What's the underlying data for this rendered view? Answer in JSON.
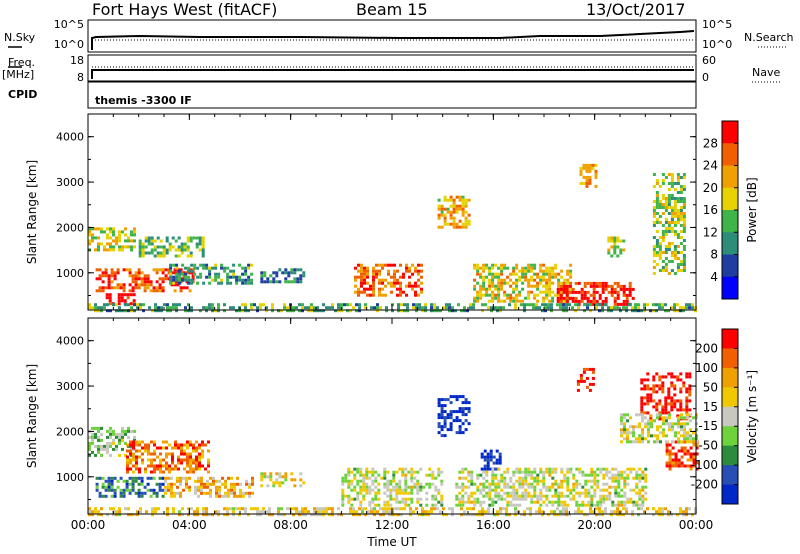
{
  "header": {
    "station": "Fort Hays West (fitACF)",
    "beam": "Beam 15",
    "date": "13/Oct/2017"
  },
  "summary_panels": {
    "nsky_label": "N.Sky",
    "nsky_ticks": [
      "10^5",
      "10^0"
    ],
    "nsearch_label": "N.Search",
    "nsearch_ticks": [
      "10^5",
      "10^0"
    ],
    "freq_label": "Freq.",
    "freq_unit": "[MHz]",
    "freq_ticks": [
      "18",
      "8"
    ],
    "nave_label": "Nave",
    "nave_ticks": [
      "60",
      "0"
    ],
    "cpid_label": "CPID",
    "cpid_value": "themis -3300 IF"
  },
  "chart_data": [
    {
      "type": "heatmap",
      "panel": "power",
      "xlabel": "",
      "ylabel": "Slant Range [km]",
      "x_ticks": [
        "00:00",
        "04:00",
        "08:00",
        "12:00",
        "16:00",
        "20:00",
        "00:00"
      ],
      "y_ticks": [
        "1000",
        "2000",
        "3000",
        "4000"
      ],
      "ylim": [
        180,
        4500
      ],
      "xlim_hours": [
        0,
        24
      ],
      "colorbar_label": "Power [dB]",
      "colorbar_ticks": [
        "4",
        "8",
        "12",
        "16",
        "20",
        "24",
        "28"
      ],
      "colorbar_range": [
        0,
        30
      ],
      "colors": [
        "#0000ff",
        "#1e3fa0",
        "#2d8c7a",
        "#3fb44a",
        "#e6d200",
        "#f0a000",
        "#f06000",
        "#ff0000"
      ],
      "regions": [
        {
          "t0": 0.0,
          "t1": 1.8,
          "r0": 1500,
          "r1": 2000,
          "level": 0.55
        },
        {
          "t0": 0.7,
          "t1": 2.0,
          "r0": 350,
          "r1": 550,
          "level": 0.95
        },
        {
          "t0": 0.3,
          "t1": 4.2,
          "r0": 600,
          "r1": 1100,
          "level": 0.85
        },
        {
          "t0": 2.0,
          "t1": 4.5,
          "r0": 1400,
          "r1": 1800,
          "level": 0.45
        },
        {
          "t0": 3.2,
          "t1": 6.5,
          "r0": 800,
          "r1": 1200,
          "level": 0.35
        },
        {
          "t0": 6.8,
          "t1": 8.5,
          "r0": 800,
          "r1": 1100,
          "level": 0.3
        },
        {
          "t0": 10.5,
          "t1": 13.2,
          "r0": 500,
          "r1": 1200,
          "level": 0.8
        },
        {
          "t0": 13.8,
          "t1": 15.0,
          "r0": 2000,
          "r1": 2700,
          "level": 0.65
        },
        {
          "t0": 15.2,
          "t1": 19.0,
          "r0": 350,
          "r1": 1200,
          "level": 0.6
        },
        {
          "t0": 18.5,
          "t1": 21.5,
          "r0": 300,
          "r1": 800,
          "level": 0.95
        },
        {
          "t0": 19.4,
          "t1": 20.0,
          "r0": 2900,
          "r1": 3400,
          "level": 0.7
        },
        {
          "t0": 20.5,
          "t1": 21.2,
          "r0": 1400,
          "r1": 1800,
          "level": 0.55
        },
        {
          "t0": 22.3,
          "t1": 23.6,
          "r0": 1000,
          "r1": 3200,
          "level": 0.5
        },
        {
          "t0": 0.0,
          "t1": 24.0,
          "r0": 180,
          "r1": 330,
          "level": 0.4
        }
      ]
    },
    {
      "type": "heatmap",
      "panel": "velocity",
      "xlabel": "Time UT",
      "ylabel": "Slant Range [km]",
      "x_ticks": [
        "00:00",
        "04:00",
        "08:00",
        "12:00",
        "16:00",
        "20:00",
        "00:00"
      ],
      "y_ticks": [
        "1000",
        "2000",
        "3000",
        "4000"
      ],
      "ylim": [
        180,
        4500
      ],
      "xlim_hours": [
        0,
        24
      ],
      "colorbar_label": "Velocity [m s⁻¹]",
      "colorbar_ticks": [
        "200",
        "100",
        "50",
        "15",
        "-15",
        "-50",
        "-100",
        "-200"
      ],
      "colorbar_range": [
        -250,
        250
      ],
      "colors": [
        "#0028c8",
        "#2850b4",
        "#2d8c3c",
        "#6ed23c",
        "#c8c8c0",
        "#f0c800",
        "#f0a000",
        "#f06000",
        "#ff0000"
      ],
      "regions": [
        {
          "t0": 0.0,
          "t1": 1.8,
          "r0": 1500,
          "r1": 2100,
          "level": 0.4
        },
        {
          "t0": 1.5,
          "t1": 4.8,
          "r0": 1100,
          "r1": 1800,
          "level": 0.8
        },
        {
          "t0": 0.3,
          "t1": 3.0,
          "r0": 550,
          "r1": 1000,
          "level": 0.25
        },
        {
          "t0": 3.0,
          "t1": 6.5,
          "r0": 600,
          "r1": 1000,
          "level": 0.65
        },
        {
          "t0": 6.8,
          "t1": 8.5,
          "r0": 800,
          "r1": 1100,
          "level": 0.55
        },
        {
          "t0": 10.0,
          "t1": 14.0,
          "r0": 400,
          "r1": 1200,
          "level": 0.5
        },
        {
          "t0": 13.8,
          "t1": 15.0,
          "r0": 1900,
          "r1": 2800,
          "level": 0.03
        },
        {
          "t0": 15.5,
          "t1": 16.3,
          "r0": 1200,
          "r1": 1600,
          "level": 0.03
        },
        {
          "t0": 14.5,
          "t1": 22.0,
          "r0": 400,
          "r1": 1200,
          "level": 0.5
        },
        {
          "t0": 19.3,
          "t1": 20.0,
          "r0": 2900,
          "r1": 3400,
          "level": 0.98
        },
        {
          "t0": 21.8,
          "t1": 23.7,
          "r0": 2300,
          "r1": 3300,
          "level": 0.95
        },
        {
          "t0": 22.8,
          "t1": 24.0,
          "r0": 1200,
          "r1": 1800,
          "level": 0.9
        },
        {
          "t0": 21.0,
          "t1": 24.0,
          "r0": 1800,
          "r1": 2400,
          "level": 0.5
        },
        {
          "t0": 0.0,
          "t1": 24.0,
          "r0": 180,
          "r1": 330,
          "level": 0.6
        }
      ]
    }
  ]
}
